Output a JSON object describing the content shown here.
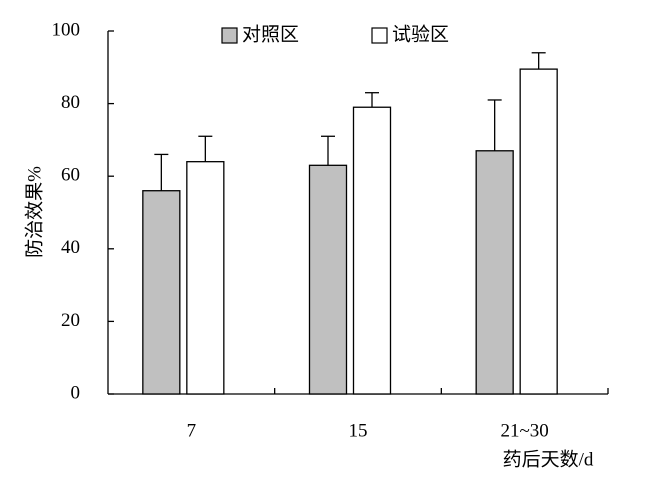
{
  "chart_data": {
    "type": "bar",
    "categories": [
      "7",
      "15",
      "21~30"
    ],
    "series": [
      {
        "name": "对照区",
        "color": "#c0c0c0",
        "values": [
          56,
          63,
          67
        ],
        "errors": [
          10,
          8,
          14
        ]
      },
      {
        "name": "试验区",
        "color": "#ffffff",
        "values": [
          64,
          79,
          89.5
        ],
        "errors": [
          7,
          4,
          4.5
        ]
      }
    ],
    "y_label": "防治效果%",
    "x_label": "药后天数/d",
    "ylim": [
      0,
      100
    ],
    "yticks": [
      0,
      20,
      40,
      60,
      80,
      100
    ],
    "legend": "top"
  }
}
